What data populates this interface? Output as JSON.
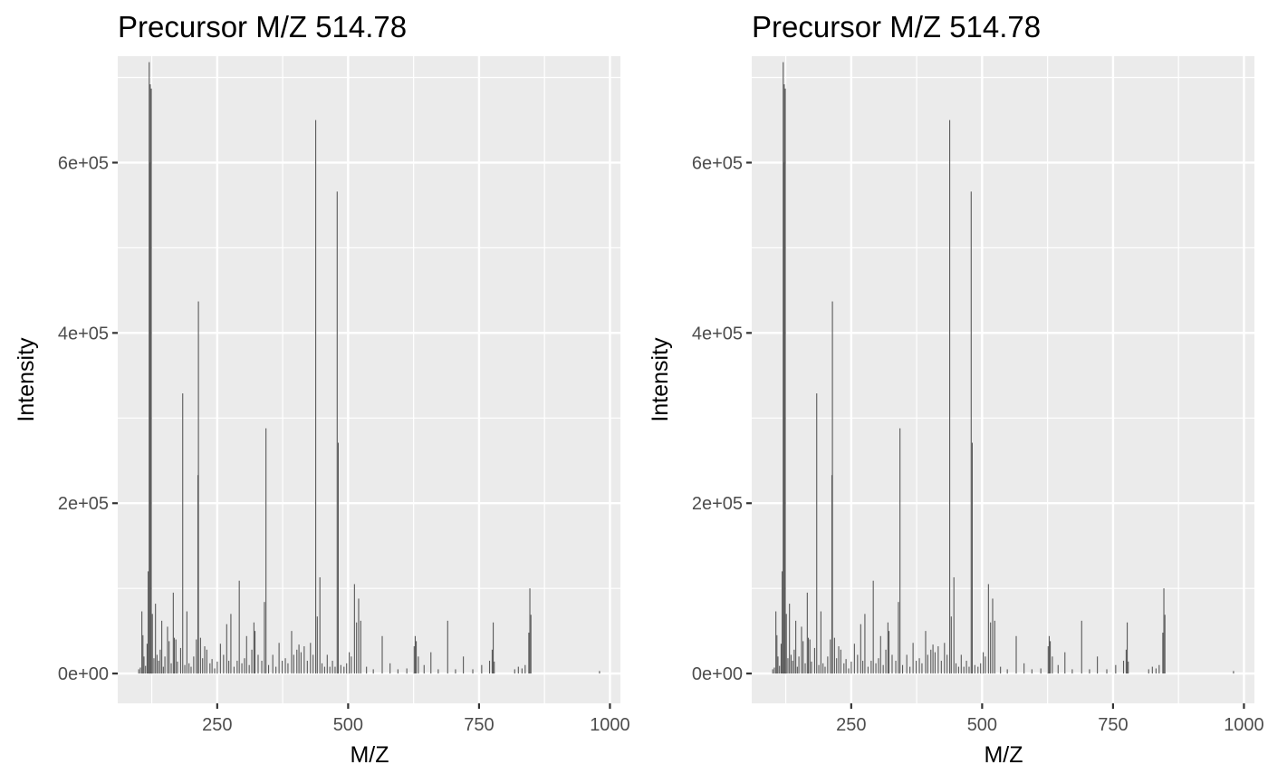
{
  "chart_data": [
    {
      "type": "bar",
      "title": "Precursor M/Z 514.78",
      "xlabel": "M/Z",
      "ylabel": "Intensity",
      "xlim": [
        60,
        1020
      ],
      "ylim": [
        -35000,
        725000
      ],
      "xticks": [
        250,
        500,
        750,
        1000
      ],
      "xtick_labels": [
        "250",
        "500",
        "750",
        "1000"
      ],
      "yticks": [
        0,
        200000,
        400000,
        600000
      ],
      "ytick_labels": [
        "0e+00",
        "2e+05",
        "4e+05",
        "6e+05"
      ],
      "grid": true,
      "background": "#ebebeb",
      "bar_color": "#595959",
      "peaks": [
        [
          100,
          5000
        ],
        [
          103,
          7000
        ],
        [
          106,
          73000
        ],
        [
          108,
          45000
        ],
        [
          110,
          20000
        ],
        [
          113,
          9000
        ],
        [
          116,
          35000
        ],
        [
          118,
          120000
        ],
        [
          120,
          718000
        ],
        [
          121,
          600000
        ],
        [
          122,
          692000
        ],
        [
          124,
          687000
        ],
        [
          126,
          70000
        ],
        [
          129,
          18000
        ],
        [
          132,
          82000
        ],
        [
          135,
          22000
        ],
        [
          138,
          15000
        ],
        [
          141,
          28000
        ],
        [
          144,
          62000
        ],
        [
          147,
          8000
        ],
        [
          150,
          20000
        ],
        [
          155,
          55000
        ],
        [
          158,
          38000
        ],
        [
          162,
          12000
        ],
        [
          166,
          95000
        ],
        [
          168,
          42000
        ],
        [
          171,
          40000
        ],
        [
          174,
          14000
        ],
        [
          180,
          30000
        ],
        [
          184,
          329000
        ],
        [
          188,
          10000
        ],
        [
          192,
          73000
        ],
        [
          196,
          12000
        ],
        [
          200,
          8000
        ],
        [
          205,
          20000
        ],
        [
          210,
          40000
        ],
        [
          213,
          233000
        ],
        [
          214,
          437000
        ],
        [
          218,
          42000
        ],
        [
          222,
          18000
        ],
        [
          226,
          32000
        ],
        [
          230,
          28000
        ],
        [
          236,
          12000
        ],
        [
          240,
          17000
        ],
        [
          245,
          6000
        ],
        [
          250,
          14000
        ],
        [
          256,
          35000
        ],
        [
          262,
          22000
        ],
        [
          268,
          58000
        ],
        [
          272,
          15000
        ],
        [
          276,
          70000
        ],
        [
          282,
          8000
        ],
        [
          288,
          15000
        ],
        [
          292,
          109000
        ],
        [
          297,
          12000
        ],
        [
          302,
          18000
        ],
        [
          306,
          44000
        ],
        [
          311,
          10000
        ],
        [
          316,
          28000
        ],
        [
          320,
          60000
        ],
        [
          322,
          50000
        ],
        [
          328,
          22000
        ],
        [
          335,
          15000
        ],
        [
          340,
          84000
        ],
        [
          343,
          288000
        ],
        [
          348,
          10000
        ],
        [
          356,
          22000
        ],
        [
          362,
          8000
        ],
        [
          368,
          36000
        ],
        [
          374,
          15000
        ],
        [
          380,
          18000
        ],
        [
          385,
          12000
        ],
        [
          392,
          50000
        ],
        [
          396,
          22000
        ],
        [
          402,
          28000
        ],
        [
          406,
          34000
        ],
        [
          410,
          25000
        ],
        [
          416,
          32000
        ],
        [
          422,
          15000
        ],
        [
          428,
          36000
        ],
        [
          433,
          22000
        ],
        [
          438,
          650000
        ],
        [
          441,
          67000
        ],
        [
          446,
          113000
        ],
        [
          450,
          12000
        ],
        [
          455,
          8000
        ],
        [
          460,
          22000
        ],
        [
          465,
          8000
        ],
        [
          470,
          15000
        ],
        [
          475,
          8000
        ],
        [
          479,
          566000
        ],
        [
          481,
          271000
        ],
        [
          486,
          10000
        ],
        [
          492,
          8000
        ],
        [
          497,
          12000
        ],
        [
          502,
          25000
        ],
        [
          506,
          20000
        ],
        [
          512,
          105000
        ],
        [
          516,
          60000
        ],
        [
          520,
          88000
        ],
        [
          524,
          62000
        ],
        [
          535,
          8000
        ],
        [
          548,
          5000
        ],
        [
          565,
          44000
        ],
        [
          580,
          12000
        ],
        [
          595,
          5000
        ],
        [
          612,
          6000
        ],
        [
          626,
          32000
        ],
        [
          628,
          44000
        ],
        [
          630,
          38000
        ],
        [
          634,
          20000
        ],
        [
          645,
          10000
        ],
        [
          658,
          25000
        ],
        [
          672,
          5000
        ],
        [
          690,
          62000
        ],
        [
          705,
          5000
        ],
        [
          720,
          20000
        ],
        [
          738,
          5000
        ],
        [
          755,
          10000
        ],
        [
          770,
          15000
        ],
        [
          775,
          28000
        ],
        [
          777,
          60000
        ],
        [
          779,
          14000
        ],
        [
          818,
          5000
        ],
        [
          825,
          8000
        ],
        [
          832,
          6000
        ],
        [
          838,
          10000
        ],
        [
          845,
          48000
        ],
        [
          847,
          100000
        ],
        [
          849,
          69000
        ],
        [
          980,
          3000
        ]
      ]
    },
    {
      "type": "bar",
      "title": "Precursor M/Z 514.78",
      "xlabel": "M/Z",
      "ylabel": "Intensity",
      "xlim": [
        60,
        1020
      ],
      "ylim": [
        -35000,
        725000
      ],
      "xticks": [
        250,
        500,
        750,
        1000
      ],
      "xtick_labels": [
        "250",
        "500",
        "750",
        "1000"
      ],
      "yticks": [
        0,
        200000,
        400000,
        600000
      ],
      "ytick_labels": [
        "0e+00",
        "2e+05",
        "4e+05",
        "6e+05"
      ],
      "grid": true,
      "background": "#ebebeb",
      "bar_color": "#595959",
      "peaks": [
        [
          100,
          5000
        ],
        [
          103,
          7000
        ],
        [
          106,
          73000
        ],
        [
          108,
          45000
        ],
        [
          110,
          20000
        ],
        [
          113,
          9000
        ],
        [
          116,
          35000
        ],
        [
          118,
          120000
        ],
        [
          120,
          718000
        ],
        [
          121,
          600000
        ],
        [
          122,
          692000
        ],
        [
          124,
          687000
        ],
        [
          126,
          70000
        ],
        [
          129,
          18000
        ],
        [
          132,
          82000
        ],
        [
          135,
          22000
        ],
        [
          138,
          15000
        ],
        [
          141,
          28000
        ],
        [
          144,
          62000
        ],
        [
          147,
          8000
        ],
        [
          150,
          20000
        ],
        [
          155,
          55000
        ],
        [
          158,
          38000
        ],
        [
          162,
          12000
        ],
        [
          166,
          95000
        ],
        [
          168,
          42000
        ],
        [
          171,
          40000
        ],
        [
          174,
          14000
        ],
        [
          180,
          30000
        ],
        [
          184,
          329000
        ],
        [
          188,
          10000
        ],
        [
          192,
          73000
        ],
        [
          196,
          12000
        ],
        [
          200,
          8000
        ],
        [
          205,
          20000
        ],
        [
          210,
          40000
        ],
        [
          213,
          233000
        ],
        [
          214,
          437000
        ],
        [
          218,
          42000
        ],
        [
          222,
          18000
        ],
        [
          226,
          32000
        ],
        [
          230,
          28000
        ],
        [
          236,
          12000
        ],
        [
          240,
          17000
        ],
        [
          245,
          6000
        ],
        [
          250,
          14000
        ],
        [
          256,
          35000
        ],
        [
          262,
          22000
        ],
        [
          268,
          58000
        ],
        [
          272,
          15000
        ],
        [
          276,
          70000
        ],
        [
          282,
          8000
        ],
        [
          288,
          15000
        ],
        [
          292,
          109000
        ],
        [
          297,
          12000
        ],
        [
          302,
          18000
        ],
        [
          306,
          44000
        ],
        [
          311,
          10000
        ],
        [
          316,
          28000
        ],
        [
          320,
          60000
        ],
        [
          322,
          50000
        ],
        [
          328,
          22000
        ],
        [
          335,
          15000
        ],
        [
          340,
          84000
        ],
        [
          343,
          288000
        ],
        [
          348,
          10000
        ],
        [
          356,
          22000
        ],
        [
          362,
          8000
        ],
        [
          368,
          36000
        ],
        [
          374,
          15000
        ],
        [
          380,
          18000
        ],
        [
          385,
          12000
        ],
        [
          392,
          50000
        ],
        [
          396,
          22000
        ],
        [
          402,
          28000
        ],
        [
          406,
          34000
        ],
        [
          410,
          25000
        ],
        [
          416,
          32000
        ],
        [
          422,
          15000
        ],
        [
          428,
          36000
        ],
        [
          433,
          22000
        ],
        [
          438,
          650000
        ],
        [
          441,
          67000
        ],
        [
          446,
          113000
        ],
        [
          450,
          12000
        ],
        [
          455,
          8000
        ],
        [
          460,
          22000
        ],
        [
          465,
          8000
        ],
        [
          470,
          15000
        ],
        [
          475,
          8000
        ],
        [
          479,
          566000
        ],
        [
          481,
          271000
        ],
        [
          486,
          10000
        ],
        [
          492,
          8000
        ],
        [
          497,
          12000
        ],
        [
          502,
          25000
        ],
        [
          506,
          20000
        ],
        [
          512,
          105000
        ],
        [
          516,
          60000
        ],
        [
          520,
          88000
        ],
        [
          524,
          62000
        ],
        [
          535,
          8000
        ],
        [
          548,
          5000
        ],
        [
          565,
          44000
        ],
        [
          580,
          12000
        ],
        [
          595,
          5000
        ],
        [
          612,
          6000
        ],
        [
          626,
          32000
        ],
        [
          628,
          44000
        ],
        [
          630,
          38000
        ],
        [
          634,
          20000
        ],
        [
          645,
          10000
        ],
        [
          658,
          25000
        ],
        [
          672,
          5000
        ],
        [
          690,
          62000
        ],
        [
          705,
          5000
        ],
        [
          720,
          20000
        ],
        [
          738,
          5000
        ],
        [
          755,
          10000
        ],
        [
          770,
          15000
        ],
        [
          775,
          28000
        ],
        [
          777,
          60000
        ],
        [
          779,
          14000
        ],
        [
          818,
          5000
        ],
        [
          825,
          8000
        ],
        [
          832,
          6000
        ],
        [
          838,
          10000
        ],
        [
          845,
          48000
        ],
        [
          847,
          100000
        ],
        [
          849,
          69000
        ],
        [
          980,
          3000
        ]
      ]
    }
  ]
}
